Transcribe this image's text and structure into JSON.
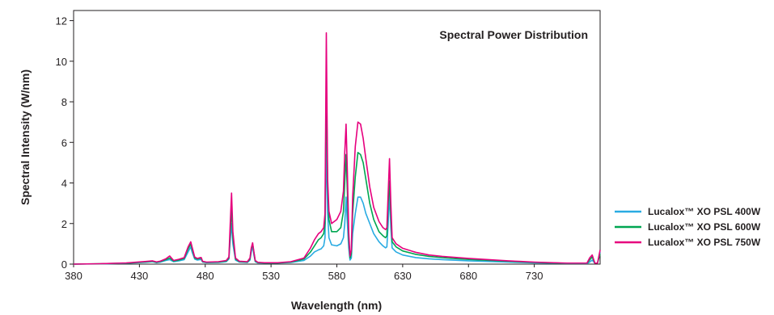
{
  "chart_data": {
    "type": "line",
    "title": "Spectral Power Distribution",
    "xlabel": "Wavelength (nm)",
    "ylabel": "Spectral Intensity (W/nm)",
    "xlim": [
      380,
      780
    ],
    "ylim": [
      0,
      12.5
    ],
    "xticks": [
      380,
      430,
      480,
      530,
      580,
      630,
      680,
      730
    ],
    "yticks": [
      0,
      2,
      4,
      6,
      8,
      10,
      12
    ],
    "grid": false,
    "legend_position": "bottom-right, outside plot",
    "series": [
      {
        "name": "Lucalox™ XO PSL 400W",
        "color": "#29abe2",
        "x": [
          380,
          400,
          420,
          435,
          440,
          443,
          446,
          450,
          453,
          456,
          460,
          464,
          467,
          469,
          470,
          472,
          474,
          476,
          477,
          478,
          481,
          490,
          496,
          498,
          499,
          500,
          501,
          503,
          506,
          512,
          514,
          515,
          516,
          517,
          518,
          520,
          525,
          535,
          545,
          555,
          560,
          563,
          566,
          568,
          570,
          571,
          572,
          573,
          574,
          576,
          580,
          583,
          585,
          586,
          587,
          588,
          589,
          590,
          591,
          592,
          594,
          596,
          598,
          600,
          602,
          605,
          608,
          612,
          615,
          617,
          618,
          619,
          620,
          621,
          622,
          625,
          630,
          640,
          650,
          660,
          670,
          680,
          690,
          700,
          710,
          720,
          730,
          740,
          750,
          755,
          760,
          765,
          770,
          772,
          774,
          776,
          778,
          780
        ],
        "values": [
          0.0,
          0.01,
          0.04,
          0.09,
          0.12,
          0.07,
          0.1,
          0.18,
          0.22,
          0.12,
          0.16,
          0.22,
          0.6,
          0.85,
          0.6,
          0.25,
          0.2,
          0.22,
          0.22,
          0.1,
          0.07,
          0.08,
          0.12,
          0.25,
          1.2,
          2.0,
          1.0,
          0.2,
          0.1,
          0.08,
          0.2,
          0.6,
          0.9,
          0.45,
          0.12,
          0.06,
          0.05,
          0.05,
          0.08,
          0.18,
          0.4,
          0.6,
          0.7,
          0.75,
          0.9,
          1.3,
          6.0,
          2.5,
          1.3,
          0.95,
          0.9,
          1.0,
          1.3,
          2.0,
          3.3,
          2.0,
          0.8,
          0.2,
          0.3,
          1.5,
          2.5,
          3.3,
          3.3,
          3.0,
          2.5,
          2.0,
          1.5,
          1.1,
          0.9,
          0.8,
          0.85,
          2.0,
          3.5,
          1.8,
          0.8,
          0.6,
          0.45,
          0.32,
          0.26,
          0.22,
          0.19,
          0.16,
          0.14,
          0.12,
          0.1,
          0.08,
          0.06,
          0.05,
          0.04,
          0.03,
          0.03,
          0.03,
          0.03,
          0.1,
          0.2,
          0.05,
          0.05,
          0.6
        ]
      },
      {
        "name": "Lucalox™ XO PSL 600W",
        "color": "#00a651",
        "x": [
          380,
          400,
          420,
          435,
          440,
          443,
          446,
          450,
          453,
          456,
          460,
          464,
          467,
          469,
          470,
          472,
          474,
          476,
          477,
          478,
          481,
          490,
          496,
          498,
          499,
          500,
          501,
          503,
          506,
          512,
          514,
          515,
          516,
          517,
          518,
          520,
          525,
          535,
          545,
          555,
          560,
          563,
          566,
          568,
          570,
          571,
          572,
          573,
          574,
          576,
          580,
          583,
          585,
          586,
          587,
          588,
          589,
          590,
          591,
          592,
          594,
          596,
          598,
          600,
          602,
          605,
          608,
          612,
          615,
          617,
          618,
          619,
          620,
          621,
          622,
          625,
          630,
          640,
          650,
          660,
          670,
          680,
          690,
          700,
          710,
          720,
          730,
          740,
          750,
          755,
          760,
          765,
          770,
          772,
          774,
          776,
          778,
          780
        ],
        "values": [
          0.0,
          0.02,
          0.05,
          0.11,
          0.14,
          0.09,
          0.13,
          0.22,
          0.3,
          0.15,
          0.2,
          0.28,
          0.75,
          1.0,
          0.75,
          0.3,
          0.25,
          0.28,
          0.28,
          0.12,
          0.09,
          0.1,
          0.15,
          0.3,
          1.5,
          2.8,
          1.3,
          0.25,
          0.12,
          0.1,
          0.25,
          0.75,
          1.0,
          0.55,
          0.15,
          0.08,
          0.06,
          0.06,
          0.1,
          0.25,
          0.6,
          0.9,
          1.2,
          1.3,
          1.5,
          2.0,
          9.2,
          3.8,
          2.2,
          1.6,
          1.6,
          1.8,
          2.6,
          4.0,
          5.4,
          3.5,
          1.2,
          0.3,
          0.5,
          2.5,
          4.3,
          5.5,
          5.4,
          5.0,
          4.2,
          3.0,
          2.2,
          1.6,
          1.4,
          1.3,
          1.4,
          3.0,
          4.1,
          2.4,
          1.1,
          0.85,
          0.65,
          0.48,
          0.38,
          0.32,
          0.27,
          0.23,
          0.2,
          0.17,
          0.14,
          0.11,
          0.09,
          0.07,
          0.05,
          0.04,
          0.04,
          0.04,
          0.04,
          0.2,
          0.35,
          0.05,
          0.05,
          0.5
        ]
      },
      {
        "name": "Lucalox™ XO PSL 750W",
        "color": "#e6007e",
        "x": [
          380,
          400,
          420,
          435,
          440,
          443,
          446,
          450,
          453,
          456,
          460,
          464,
          467,
          469,
          470,
          472,
          474,
          476,
          477,
          478,
          481,
          490,
          496,
          498,
          499,
          500,
          501,
          503,
          506,
          512,
          514,
          515,
          516,
          517,
          518,
          520,
          525,
          535,
          545,
          555,
          560,
          563,
          566,
          568,
          570,
          571,
          572,
          573,
          574,
          576,
          580,
          583,
          585,
          586,
          587,
          588,
          589,
          590,
          591,
          592,
          594,
          596,
          598,
          600,
          602,
          605,
          608,
          612,
          615,
          617,
          618,
          619,
          620,
          621,
          622,
          625,
          630,
          640,
          650,
          660,
          670,
          680,
          690,
          700,
          710,
          720,
          730,
          740,
          750,
          755,
          760,
          765,
          770,
          772,
          774,
          776,
          778,
          780
        ],
        "values": [
          0.0,
          0.02,
          0.06,
          0.13,
          0.16,
          0.11,
          0.15,
          0.26,
          0.4,
          0.18,
          0.24,
          0.32,
          0.85,
          1.1,
          0.85,
          0.35,
          0.28,
          0.32,
          0.32,
          0.14,
          0.1,
          0.12,
          0.18,
          0.35,
          2.0,
          3.5,
          1.6,
          0.3,
          0.14,
          0.12,
          0.3,
          0.8,
          1.05,
          0.6,
          0.18,
          0.09,
          0.07,
          0.07,
          0.12,
          0.3,
          0.8,
          1.2,
          1.5,
          1.6,
          1.8,
          2.5,
          11.4,
          4.2,
          2.6,
          2.0,
          2.2,
          2.6,
          3.6,
          5.5,
          6.9,
          4.5,
          1.6,
          0.4,
          0.7,
          3.3,
          5.8,
          7.0,
          6.9,
          6.2,
          5.2,
          3.8,
          2.8,
          2.1,
          1.8,
          1.7,
          1.8,
          3.5,
          5.2,
          3.0,
          1.3,
          1.0,
          0.78,
          0.58,
          0.45,
          0.38,
          0.33,
          0.28,
          0.24,
          0.2,
          0.16,
          0.13,
          0.1,
          0.08,
          0.06,
          0.05,
          0.05,
          0.05,
          0.05,
          0.3,
          0.45,
          0.05,
          0.05,
          0.7
        ]
      }
    ]
  }
}
